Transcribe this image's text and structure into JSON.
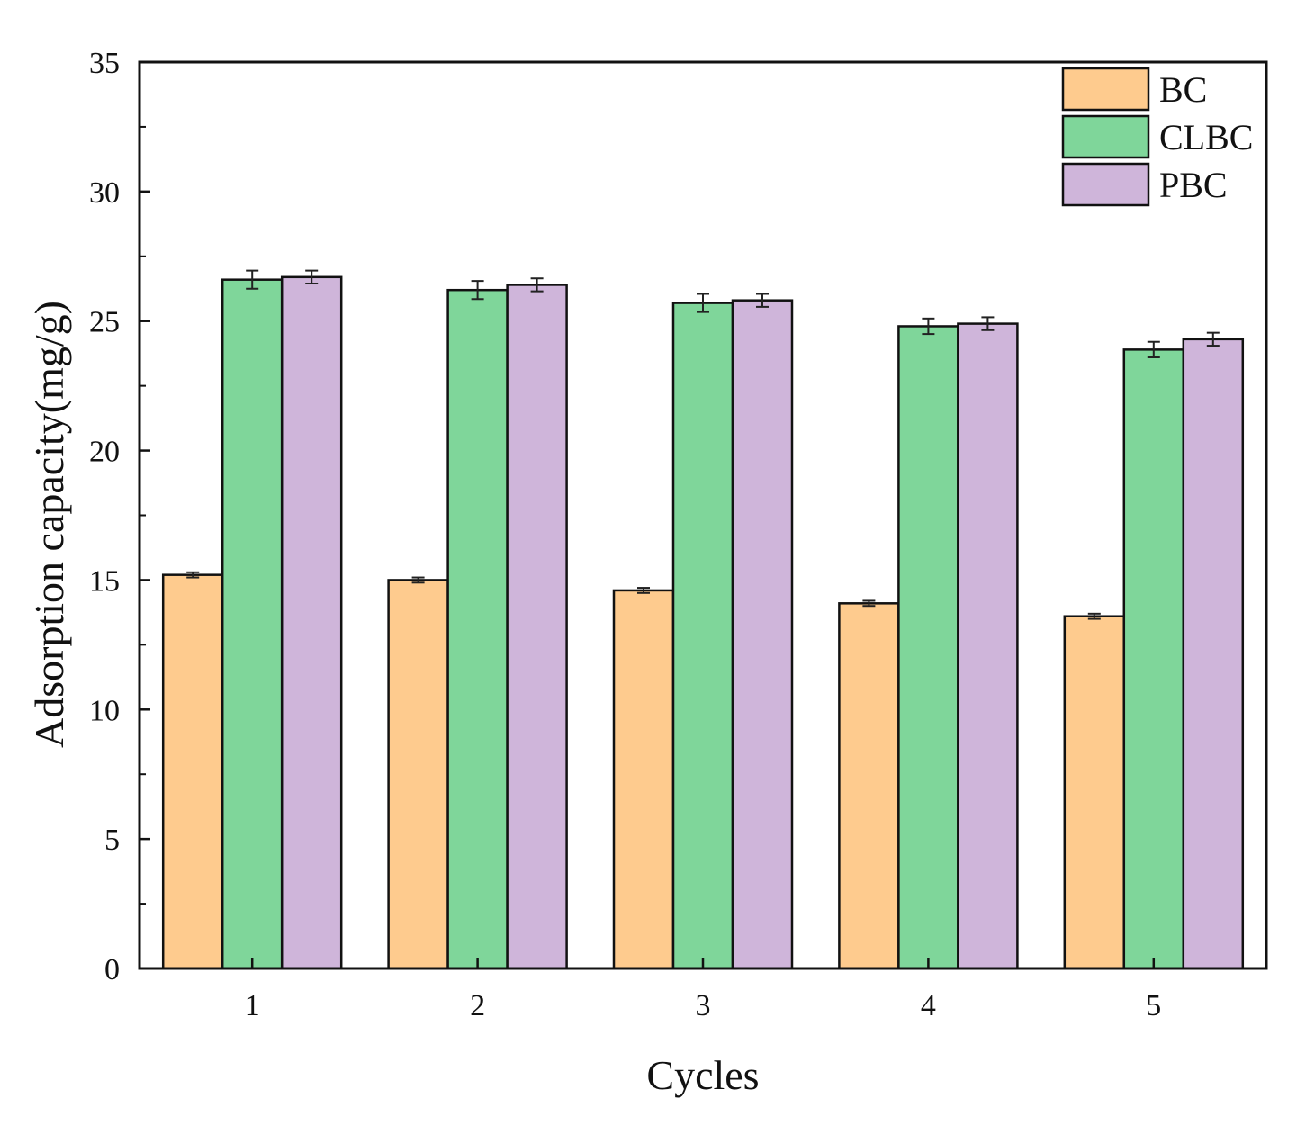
{
  "chart_data": {
    "type": "bar",
    "title": "",
    "xlabel": "Cycles",
    "ylabel": "Adsorption capacity(mg/g)",
    "categories": [
      "1",
      "2",
      "3",
      "4",
      "5"
    ],
    "ylim": [
      0,
      35
    ],
    "yticks": [
      0,
      5,
      10,
      15,
      20,
      25,
      30,
      35
    ],
    "ytick_labels": [
      "0",
      "5",
      "10",
      "15",
      "20",
      "25",
      "30",
      "35"
    ],
    "grid": false,
    "legend_position": "top-right",
    "series": [
      {
        "name": "BC",
        "color": "#fecb8e",
        "values": [
          15.2,
          15.0,
          14.6,
          14.1,
          13.6
        ],
        "errors": [
          0.1,
          0.1,
          0.1,
          0.1,
          0.1
        ]
      },
      {
        "name": "CLBC",
        "color": "#7fd69a",
        "values": [
          26.6,
          26.2,
          25.7,
          24.8,
          23.9
        ],
        "errors": [
          0.35,
          0.35,
          0.35,
          0.3,
          0.3
        ]
      },
      {
        "name": "PBC",
        "color": "#cfb5da",
        "values": [
          26.7,
          26.4,
          25.8,
          24.9,
          24.3
        ],
        "errors": [
          0.25,
          0.25,
          0.25,
          0.25,
          0.25
        ]
      }
    ]
  }
}
